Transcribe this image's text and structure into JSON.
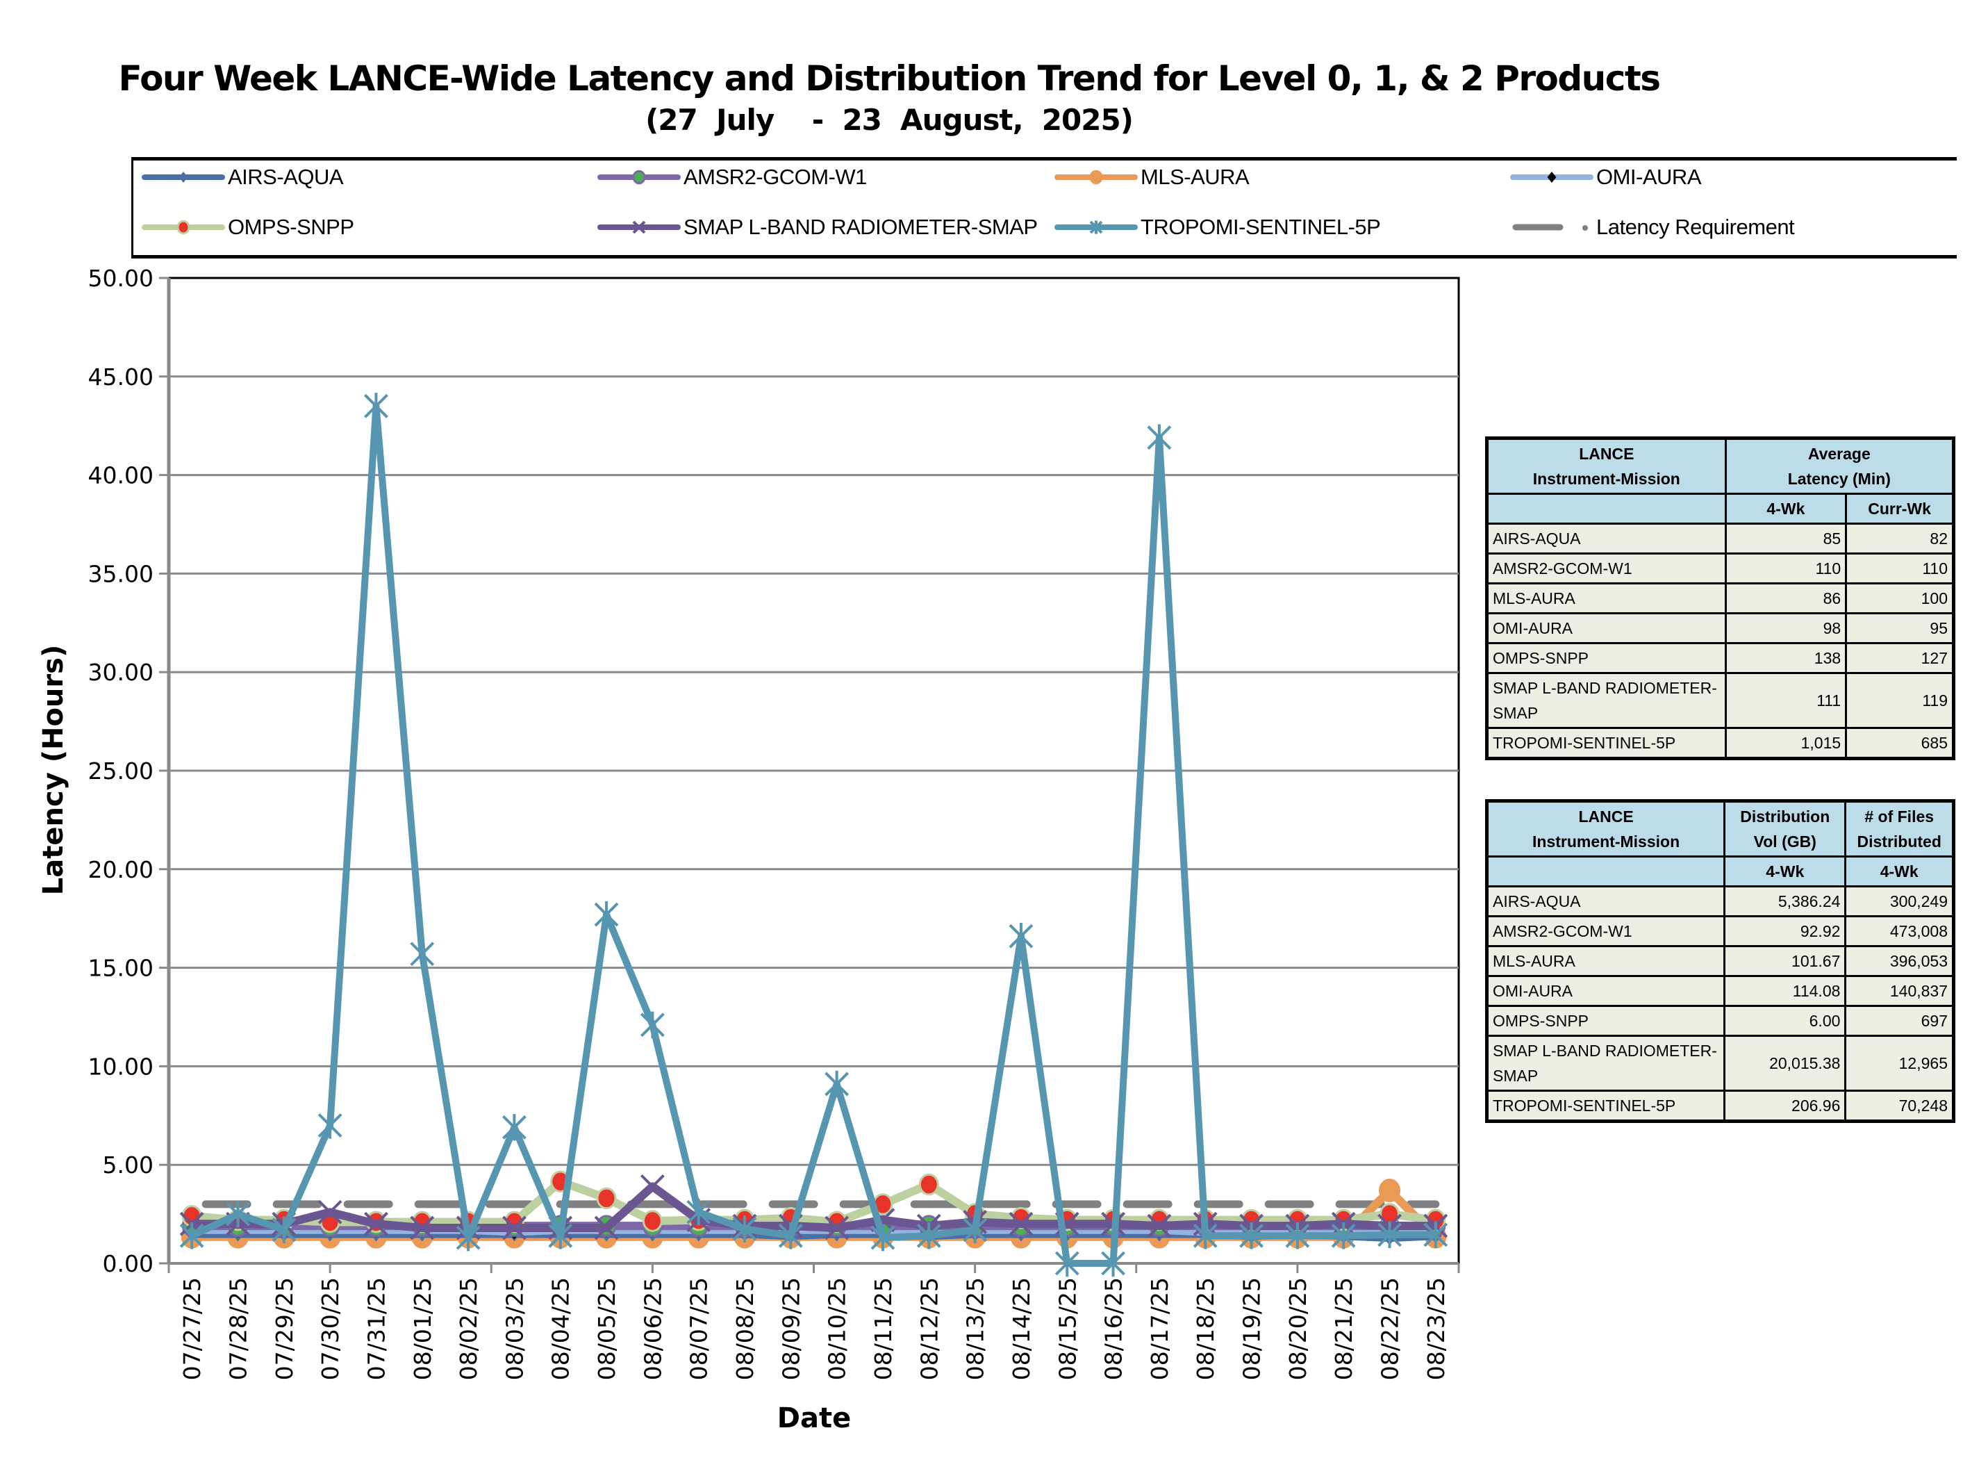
{
  "header": {
    "title": "Four Week LANCE-Wide Latency and Distribution Trend for Level 0, 1, & 2 Products",
    "subtitle": "(27  July    -  23  August,  2025)"
  },
  "legend": [
    {
      "name": "AIRS-AQUA",
      "color": "#4a6fa5",
      "marker": "diamond",
      "marker_color": "#4a6fa5"
    },
    {
      "name": "AMSR2-GCOM-W1",
      "color": "#7f68a8",
      "marker": "circle",
      "marker_color": "#4caf50"
    },
    {
      "name": "MLS-AURA",
      "color": "#eb9a56",
      "marker": "circle",
      "marker_color": "#eb9a56"
    },
    {
      "name": "OMI-AURA",
      "color": "#95b3e0",
      "marker": "diamond",
      "marker_color": "#000000"
    },
    {
      "name": "OMPS-SNPP",
      "color": "#bdd1a0",
      "marker": "circle",
      "marker_color": "#e8332a"
    },
    {
      "name": "SMAP L-BAND RADIOMETER-SMAP",
      "color": "#6a5690",
      "marker": "x",
      "marker_color": "#6a5690"
    },
    {
      "name": "TROPOMI-SENTINEL-5P",
      "color": "#5796b0",
      "marker": "star",
      "marker_color": "#5796b0"
    },
    {
      "name": "Latency Requirement",
      "color": "#808080",
      "marker": "dash",
      "marker_color": "#808080"
    }
  ],
  "chart_data": {
    "type": "line",
    "title": "Four Week LANCE-Wide Latency and Distribution Trend for Level 0, 1, & 2 Products",
    "subtitle": "(27 July - 23 August, 2025)",
    "xlabel": "Date",
    "ylabel": "Latency (Hours)",
    "ylim": [
      0,
      50
    ],
    "yticks": [
      "0.00",
      "5.00",
      "10.00",
      "15.00",
      "20.00",
      "25.00",
      "30.00",
      "35.00",
      "40.00",
      "45.00",
      "50.00"
    ],
    "ytick_values": [
      0,
      5,
      10,
      15,
      20,
      25,
      30,
      35,
      40,
      45,
      50
    ],
    "grid": true,
    "legend_position": "top",
    "categories": [
      "07/27/25",
      "07/28/25",
      "07/29/25",
      "07/30/25",
      "07/31/25",
      "08/01/25",
      "08/02/25",
      "08/03/25",
      "08/04/25",
      "08/05/25",
      "08/06/25",
      "08/07/25",
      "08/08/25",
      "08/09/25",
      "08/10/25",
      "08/11/25",
      "08/12/25",
      "08/13/25",
      "08/14/25",
      "08/15/25",
      "08/16/25",
      "08/17/25",
      "08/18/25",
      "08/19/25",
      "08/20/25",
      "08/21/25",
      "08/22/25",
      "08/23/25"
    ],
    "series": [
      {
        "name": "AIRS-AQUA",
        "values": [
          1.5,
          1.5,
          1.5,
          1.5,
          1.5,
          1.5,
          1.5,
          1.5,
          1.5,
          1.5,
          1.5,
          1.5,
          1.5,
          1.4,
          1.5,
          1.5,
          1.4,
          1.5,
          1.5,
          1.5,
          1.5,
          1.5,
          1.5,
          1.4,
          1.5,
          1.4,
          1.3,
          1.4
        ]
      },
      {
        "name": "AMSR2-GCOM-W1",
        "values": [
          1.9,
          1.9,
          1.9,
          1.9,
          1.9,
          1.9,
          1.9,
          1.9,
          1.9,
          1.9,
          1.9,
          1.9,
          1.9,
          1.9,
          1.9,
          1.9,
          1.9,
          1.9,
          1.9,
          1.9,
          1.9,
          1.9,
          1.9,
          1.9,
          1.9,
          1.9,
          1.9,
          1.9
        ]
      },
      {
        "name": "MLS-AURA",
        "values": [
          1.35,
          1.35,
          1.35,
          1.35,
          1.35,
          1.35,
          1.35,
          1.35,
          1.35,
          1.35,
          1.35,
          1.35,
          1.35,
          1.35,
          1.35,
          1.35,
          1.35,
          1.35,
          1.35,
          1.35,
          1.35,
          1.35,
          1.35,
          1.35,
          1.35,
          1.35,
          3.7,
          1.35
        ]
      },
      {
        "name": "OMI-AURA",
        "values": [
          1.7,
          1.7,
          1.7,
          1.7,
          1.7,
          1.7,
          1.7,
          1.6,
          1.7,
          1.7,
          1.7,
          1.7,
          1.7,
          1.7,
          1.7,
          1.7,
          1.7,
          1.7,
          1.7,
          1.7,
          1.7,
          1.7,
          1.6,
          1.7,
          1.7,
          1.7,
          1.7,
          1.7
        ]
      },
      {
        "name": "OMPS-SNPP",
        "values": [
          2.4,
          2.2,
          2.2,
          2.1,
          2.1,
          2.1,
          2.1,
          2.1,
          4.15,
          3.3,
          2.15,
          2.2,
          2.2,
          2.3,
          2.1,
          3.0,
          4.0,
          2.5,
          2.3,
          2.2,
          2.2,
          2.2,
          2.2,
          2.2,
          2.2,
          2.2,
          2.5,
          2.2
        ]
      },
      {
        "name": "SMAP L-BAND RADIOMETER-SMAP",
        "values": [
          2.0,
          2.0,
          2.0,
          2.6,
          2.0,
          1.8,
          1.8,
          1.8,
          1.8,
          1.8,
          3.9,
          2.2,
          1.9,
          1.9,
          1.8,
          2.2,
          1.9,
          2.1,
          2.0,
          2.0,
          2.0,
          1.9,
          2.0,
          1.9,
          1.9,
          2.0,
          1.9,
          1.9
        ]
      },
      {
        "name": "TROPOMI-SENTINEL-5P",
        "values": [
          1.4,
          2.5,
          1.7,
          7.0,
          43.5,
          15.7,
          1.3,
          6.9,
          1.4,
          17.7,
          12.1,
          2.6,
          1.75,
          1.4,
          9.1,
          1.3,
          1.4,
          1.7,
          16.6,
          0.0,
          0.0,
          41.9,
          1.4,
          1.4,
          1.4,
          1.4,
          1.45,
          1.45
        ]
      },
      {
        "name": "Latency Requirement",
        "values": [
          3,
          3,
          3,
          3,
          3,
          3,
          3,
          3,
          3,
          3,
          3,
          3,
          3,
          3,
          3,
          3,
          3,
          3,
          3,
          3,
          3,
          3,
          3,
          3,
          3,
          3,
          3,
          3
        ]
      }
    ]
  },
  "latency_table": {
    "header_col1": [
      "LANCE",
      "Instrument-Mission"
    ],
    "header_col2": [
      "Average",
      "Latency (Min)"
    ],
    "sub_headers": [
      "4-Wk",
      "Curr-Wk"
    ],
    "rows": [
      {
        "name": "AIRS-AQUA",
        "four_wk": "85",
        "curr_wk": "82"
      },
      {
        "name": "AMSR2-GCOM-W1",
        "four_wk": "110",
        "curr_wk": "110"
      },
      {
        "name": "MLS-AURA",
        "four_wk": "86",
        "curr_wk": "100"
      },
      {
        "name": "OMI-AURA",
        "four_wk": "98",
        "curr_wk": "95"
      },
      {
        "name": "OMPS-SNPP",
        "four_wk": "138",
        "curr_wk": "127"
      },
      {
        "name": "SMAP L-BAND RADIOMETER-SMAP",
        "four_wk": "111",
        "curr_wk": "119"
      },
      {
        "name": "TROPOMI-SENTINEL-5P",
        "four_wk": "1,015",
        "curr_wk": "685"
      }
    ]
  },
  "distribution_table": {
    "header_col1": [
      "LANCE",
      "Instrument-Mission"
    ],
    "header_col2": [
      "Distribution",
      "Vol (GB)"
    ],
    "header_col3": [
      "# of Files",
      "Distributed"
    ],
    "sub_headers": [
      "4-Wk",
      "4-Wk"
    ],
    "rows": [
      {
        "name": "AIRS-AQUA",
        "vol": "5,386.24",
        "files": "300,249"
      },
      {
        "name": "AMSR2-GCOM-W1",
        "vol": "92.92",
        "files": "473,008"
      },
      {
        "name": "MLS-AURA",
        "vol": "101.67",
        "files": "396,053"
      },
      {
        "name": "OMI-AURA",
        "vol": "114.08",
        "files": "140,837"
      },
      {
        "name": "OMPS-SNPP",
        "vol": "6.00",
        "files": "697"
      },
      {
        "name": "SMAP L-BAND RADIOMETER-SMAP",
        "vol": "20,015.38",
        "files": "12,965"
      },
      {
        "name": "TROPOMI-SENTINEL-5P",
        "vol": "206.96",
        "files": "70,248"
      }
    ]
  }
}
